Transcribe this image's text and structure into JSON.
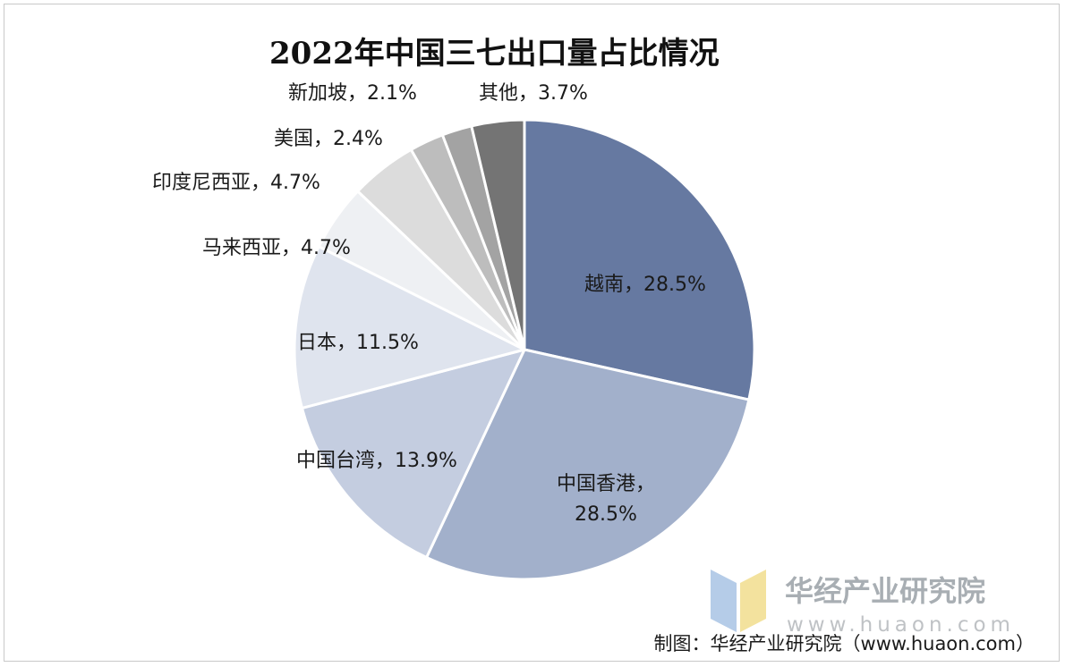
{
  "chart_data": {
    "type": "pie",
    "title": "2022年中国三七出口量占比情况",
    "slices": [
      {
        "name": "越南",
        "value": 28.5,
        "label": "越南，28.5%",
        "color": "#6679a1"
      },
      {
        "name": "中国香港",
        "value": 28.5,
        "label": "中国香港，28.5%",
        "color": "#a2b0cb"
      },
      {
        "name": "中国台湾",
        "value": 13.9,
        "label": "中国台湾，13.9%",
        "color": "#c4cde0"
      },
      {
        "name": "日本",
        "value": 11.5,
        "label": "日本，11.5%",
        "color": "#dfe4ee"
      },
      {
        "name": "马来西亚",
        "value": 4.7,
        "label": "马来西亚，4.7%",
        "color": "#eef0f3"
      },
      {
        "name": "印度尼西亚",
        "value": 4.7,
        "label": "印度尼西亚，4.7%",
        "color": "#dcdcdc"
      },
      {
        "name": "美国",
        "value": 2.4,
        "label": "美国，2.4%",
        "color": "#bdbdbd"
      },
      {
        "name": "新加坡",
        "value": 2.1,
        "label": "新加坡，2.1%",
        "color": "#a3a3a3"
      },
      {
        "name": "其他",
        "value": 3.7,
        "label": "其他，3.7%",
        "color": "#747474"
      }
    ],
    "start_angle_deg": 0,
    "direction": "clockwise",
    "legend": "none"
  },
  "watermark": {
    "text": "华经产业研究院",
    "subtext": "www.huaon.com",
    "logo_colors": [
      "#a9c4e4",
      "#f1de8e"
    ]
  },
  "source": {
    "text": "制图：华经产业研究院（www.huaon.com）"
  }
}
